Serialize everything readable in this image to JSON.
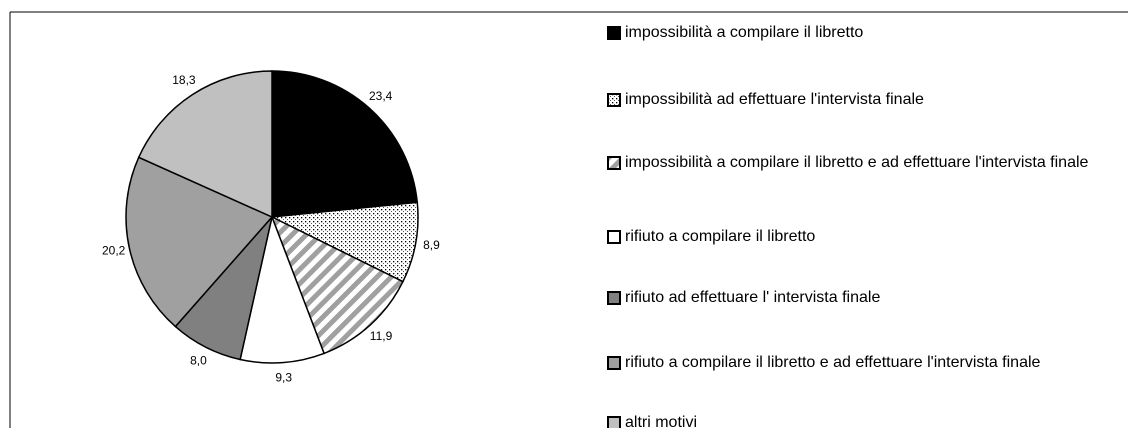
{
  "chart_data": {
    "type": "pie",
    "categories": [
      "impossibilità a compilare il libretto",
      "impossibilità ad effettuare l'intervista finale",
      "impossibilità a compilare il libretto e ad effettuare l'intervista finale",
      "rifiuto a compilare il libretto",
      "rifiuto ad effettuare l' intervista finale",
      "rifiuto a compilare il libretto e ad effettuare l'intervista finale",
      "altri motivi"
    ],
    "values": [
      23.4,
      8.9,
      11.9,
      9.3,
      8.0,
      20.2,
      18.3
    ],
    "value_labels": [
      "23,4",
      "8,9",
      "11,9",
      "9,3",
      "8,0",
      "20,2",
      "18,3"
    ],
    "colors": [
      "#000000",
      "#ffffff",
      "#ffffff",
      "#ffffff",
      "#808080",
      "#a0a0a0",
      "#c0c0c0"
    ],
    "patterns": [
      "solid",
      "dots",
      "stripes",
      "solid",
      "solid",
      "solid",
      "solid"
    ],
    "legend": "right"
  }
}
